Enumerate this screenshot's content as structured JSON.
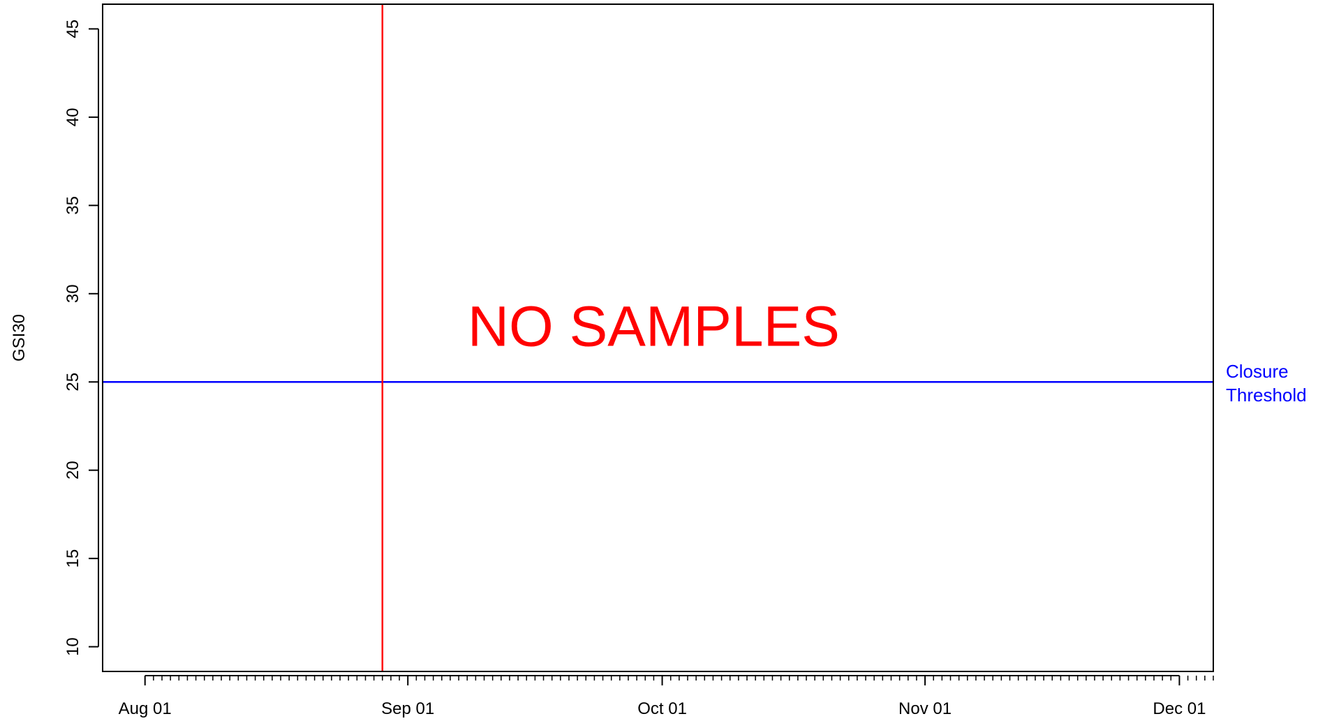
{
  "chart_data": {
    "type": "line",
    "title": "",
    "xlabel": "",
    "ylabel": "GSI30",
    "x_type": "date",
    "xlim": [
      "2023-07-27",
      "2023-12-05"
    ],
    "ylim": [
      8.6,
      46.4
    ],
    "x_ticks": [
      {
        "date": "2023-08-01",
        "label": "Aug 01"
      },
      {
        "date": "2023-09-01",
        "label": "Sep 01"
      },
      {
        "date": "2023-10-01",
        "label": "Oct 01"
      },
      {
        "date": "2023-11-01",
        "label": "Nov 01"
      },
      {
        "date": "2023-12-01",
        "label": "Dec 01"
      }
    ],
    "y_ticks": [
      10,
      15,
      20,
      25,
      30,
      35,
      40,
      45
    ],
    "minor_x_tick_interval_days": 1,
    "series": [],
    "reference_lines": [
      {
        "orientation": "horizontal",
        "y": 25,
        "color": "#0000ff",
        "label_lines": [
          "Closure",
          "Threshold"
        ]
      },
      {
        "orientation": "vertical",
        "x": "2023-08-29",
        "color": "#ff0000"
      }
    ],
    "annotations": [
      {
        "text": "NO SAMPLES",
        "x": "2023-09-30",
        "y": 27.9,
        "color": "#ff0000"
      }
    ],
    "grid": false,
    "legend": "none"
  }
}
